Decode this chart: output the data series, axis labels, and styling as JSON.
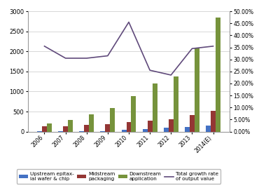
{
  "years": [
    "2006",
    "2007",
    "2008",
    "2009",
    "2010",
    "2011",
    "2012",
    "2013",
    "2014(E)"
  ],
  "upstream": [
    15,
    12,
    18,
    15,
    50,
    65,
    90,
    120,
    155
  ],
  "midstream": [
    130,
    140,
    165,
    190,
    245,
    280,
    310,
    420,
    510
  ],
  "downstream": [
    200,
    295,
    430,
    590,
    890,
    1200,
    1380,
    2080,
    2850
  ],
  "growth_rate": [
    0.355,
    0.305,
    0.305,
    0.315,
    0.455,
    0.255,
    0.235,
    0.345,
    0.355
  ],
  "bar_colors": [
    "#4472c4",
    "#943634",
    "#76933c",
    "#604a7b"
  ],
  "left_ylim": [
    0,
    3000
  ],
  "right_ylim": [
    0,
    0.5
  ],
  "left_yticks": [
    0,
    500,
    1000,
    1500,
    2000,
    2500,
    3000
  ],
  "right_yticks": [
    0.0,
    0.05,
    0.1,
    0.15,
    0.2,
    0.25,
    0.3,
    0.35,
    0.4,
    0.45,
    0.5
  ],
  "legend_labels": [
    "Upstream epitax-\nial wafer & chip",
    "Midstream\npackaging",
    "Downstream\napplication",
    "Total growth rate\nof output value"
  ],
  "background_color": "#ffffff",
  "grid_color": "#c8c8c8",
  "fig_width": 4.0,
  "fig_height": 2.68,
  "dpi": 100
}
